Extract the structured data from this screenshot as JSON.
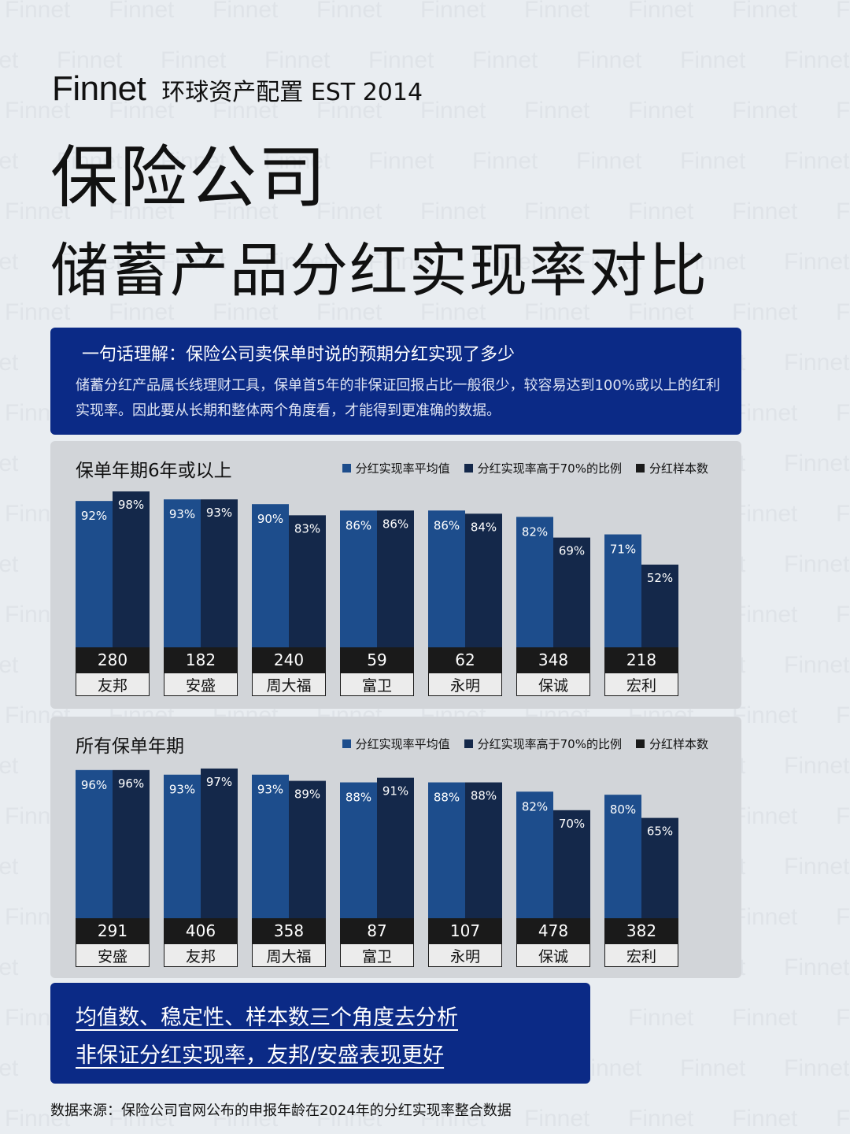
{
  "brand": {
    "logo": "Finnet",
    "tagline": "环球资产配置 EST 2014",
    "watermark": "Finnet"
  },
  "title": {
    "line1": "保险公司",
    "line2": "储蓄产品分红实现率对比"
  },
  "summary": {
    "heading": "一句话理解：保险公司卖保单时说的预期分红实现了多少",
    "body": "储蓄分红产品属长线理财工具，保单首5年的非保证回报占比一般很少，较容易达到100%或以上的红利实现率。因此要从长期和整体两个角度看，才能得到更准确的数据。"
  },
  "legend": {
    "items": [
      {
        "label": "分红实现率平均值",
        "color": "#1d4d8c"
      },
      {
        "label": "分红实现率高于70%的比例",
        "color": "#14284a"
      },
      {
        "label": "分红样本数",
        "color": "#1a1a1a"
      }
    ]
  },
  "chart_data": [
    {
      "type": "bar",
      "title": "保单年期6年或以上",
      "categories": [
        "友邦",
        "安盛",
        "周大福",
        "富卫",
        "永明",
        "保诚",
        "宏利"
      ],
      "series": [
        {
          "name": "分红实现率平均值",
          "values": [
            92,
            93,
            90,
            86,
            86,
            82,
            71
          ],
          "labels": [
            "92%",
            "93%",
            "90%",
            "86%",
            "86%",
            "82%",
            "71%"
          ]
        },
        {
          "name": "分红实现率高于70%的比例",
          "values": [
            98,
            93,
            83,
            86,
            84,
            69,
            52
          ],
          "labels": [
            "98%",
            "93%",
            "83%",
            "86%",
            "84%",
            "69%",
            "52%"
          ]
        },
        {
          "name": "分红样本数",
          "values": [
            280,
            182,
            240,
            59,
            62,
            348,
            218
          ]
        }
      ]
    },
    {
      "type": "bar",
      "title": "所有保单年期",
      "categories": [
        "安盛",
        "友邦",
        "周大福",
        "富卫",
        "永明",
        "保诚",
        "宏利"
      ],
      "series": [
        {
          "name": "分红实现率平均值",
          "values": [
            96,
            93,
            93,
            88,
            88,
            82,
            80
          ],
          "labels": [
            "96%",
            "93%",
            "93%",
            "88%",
            "88%",
            "82%",
            "80%"
          ]
        },
        {
          "name": "分红实现率高于70%的比例",
          "values": [
            96,
            97,
            89,
            91,
            88,
            70,
            65
          ],
          "labels": [
            "96%",
            "97%",
            "89%",
            "91%",
            "88%",
            "70%",
            "65%"
          ]
        },
        {
          "name": "分红样本数",
          "values": [
            291,
            406,
            358,
            87,
            107,
            478,
            382
          ]
        }
      ]
    }
  ],
  "conclusion": {
    "line1": "均值数、稳定性、样本数三个角度去分析",
    "line2": "非保证分红实现率，友邦/安盛表现更好"
  },
  "source": "数据来源：保险公司官网公布的申报年龄在2024年的分红实现率整合数据"
}
